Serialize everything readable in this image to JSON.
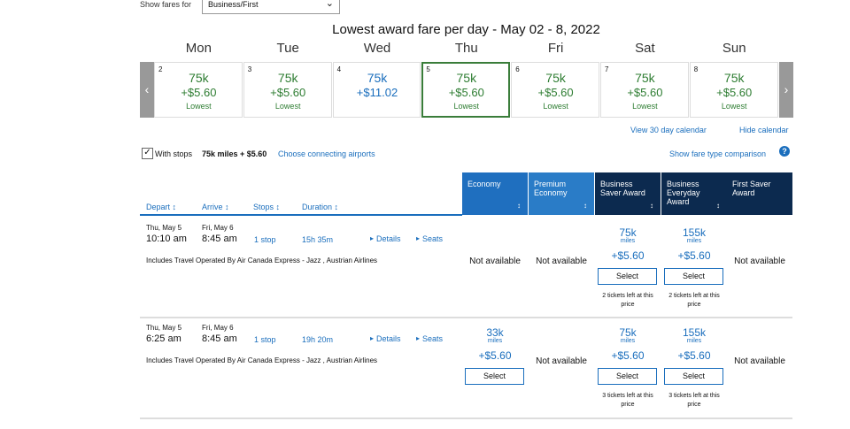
{
  "filter": {
    "label": "Show fares for",
    "value": "Business/First"
  },
  "title": "Lowest award fare per day - May 02 - 8, 2022",
  "calendar": [
    {
      "weekday": "Mon",
      "date": "2",
      "miles": "75k",
      "fee": "+$5.60",
      "note": "Lowest"
    },
    {
      "weekday": "Tue",
      "date": "3",
      "miles": "75k",
      "fee": "+$5.60",
      "note": "Lowest"
    },
    {
      "weekday": "Wed",
      "date": "4",
      "miles": "75k",
      "fee": "+$11.02"
    },
    {
      "weekday": "Thu",
      "date": "5",
      "miles": "75k",
      "fee": "+$5.60",
      "note": "Lowest",
      "selected": true
    },
    {
      "weekday": "Fri",
      "date": "6",
      "miles": "75k",
      "fee": "+$5.60",
      "note": "Lowest"
    },
    {
      "weekday": "Sat",
      "date": "7",
      "miles": "75k",
      "fee": "+$5.60",
      "note": "Lowest"
    },
    {
      "weekday": "Sun",
      "date": "8",
      "miles": "75k",
      "fee": "+$5.60",
      "note": "Lowest"
    }
  ],
  "links": {
    "view_calendar": "View 30 day calendar",
    "hide_calendar": "Hide calendar"
  },
  "options": {
    "with_stops": "With stops",
    "best": "75k miles + $5.60",
    "connecting": "Choose connecting airports",
    "comparison": "Show fare type comparison"
  },
  "sort_headers": [
    "Depart",
    "Arrive",
    "Stops",
    "Duration"
  ],
  "fare_columns": [
    "Economy",
    "Premium Economy",
    "Business Saver Award",
    "Business Everyday Award",
    "First Saver Award"
  ],
  "flights": [
    {
      "depart_date": "Thu, May 5",
      "depart_time": "10:10 am",
      "arrive_date": "Fri, May 6",
      "arrive_time": "8:45 am",
      "stops": "1 stop",
      "duration": "15h 35m",
      "details": "Details",
      "seats": "Seats",
      "operator": "Includes Travel Operated By Air Canada Express - Jazz , Austrian Airlines",
      "fares": [
        {
          "status": "Not available"
        },
        {
          "status": "Not available"
        },
        {
          "miles": "75k",
          "unit": "miles",
          "fee": "+$5.60",
          "button": "Select",
          "note": "2 tickets left at this price"
        },
        {
          "miles": "155k",
          "unit": "miles",
          "fee": "+$5.60",
          "button": "Select",
          "note": "2 tickets left at this price"
        },
        {
          "status": "Not available"
        }
      ]
    },
    {
      "depart_date": "Thu, May 5",
      "depart_time": "6:25 am",
      "arrive_date": "Fri, May 6",
      "arrive_time": "8:45 am",
      "stops": "1 stop",
      "duration": "19h 20m",
      "details": "Details",
      "seats": "Seats",
      "operator": "Includes Travel Operated By Air Canada Express - Jazz , Austrian Airlines",
      "fares": [
        {
          "miles": "33k",
          "unit": "miles",
          "fee": "+$5.60",
          "button": "Select"
        },
        {
          "status": "Not available"
        },
        {
          "miles": "75k",
          "unit": "miles",
          "fee": "+$5.60",
          "button": "Select",
          "note": "3 tickets left at this price"
        },
        {
          "miles": "155k",
          "unit": "miles",
          "fee": "+$5.60",
          "button": "Select",
          "note": "3 tickets left at this price"
        },
        {
          "status": "Not available"
        }
      ]
    }
  ]
}
